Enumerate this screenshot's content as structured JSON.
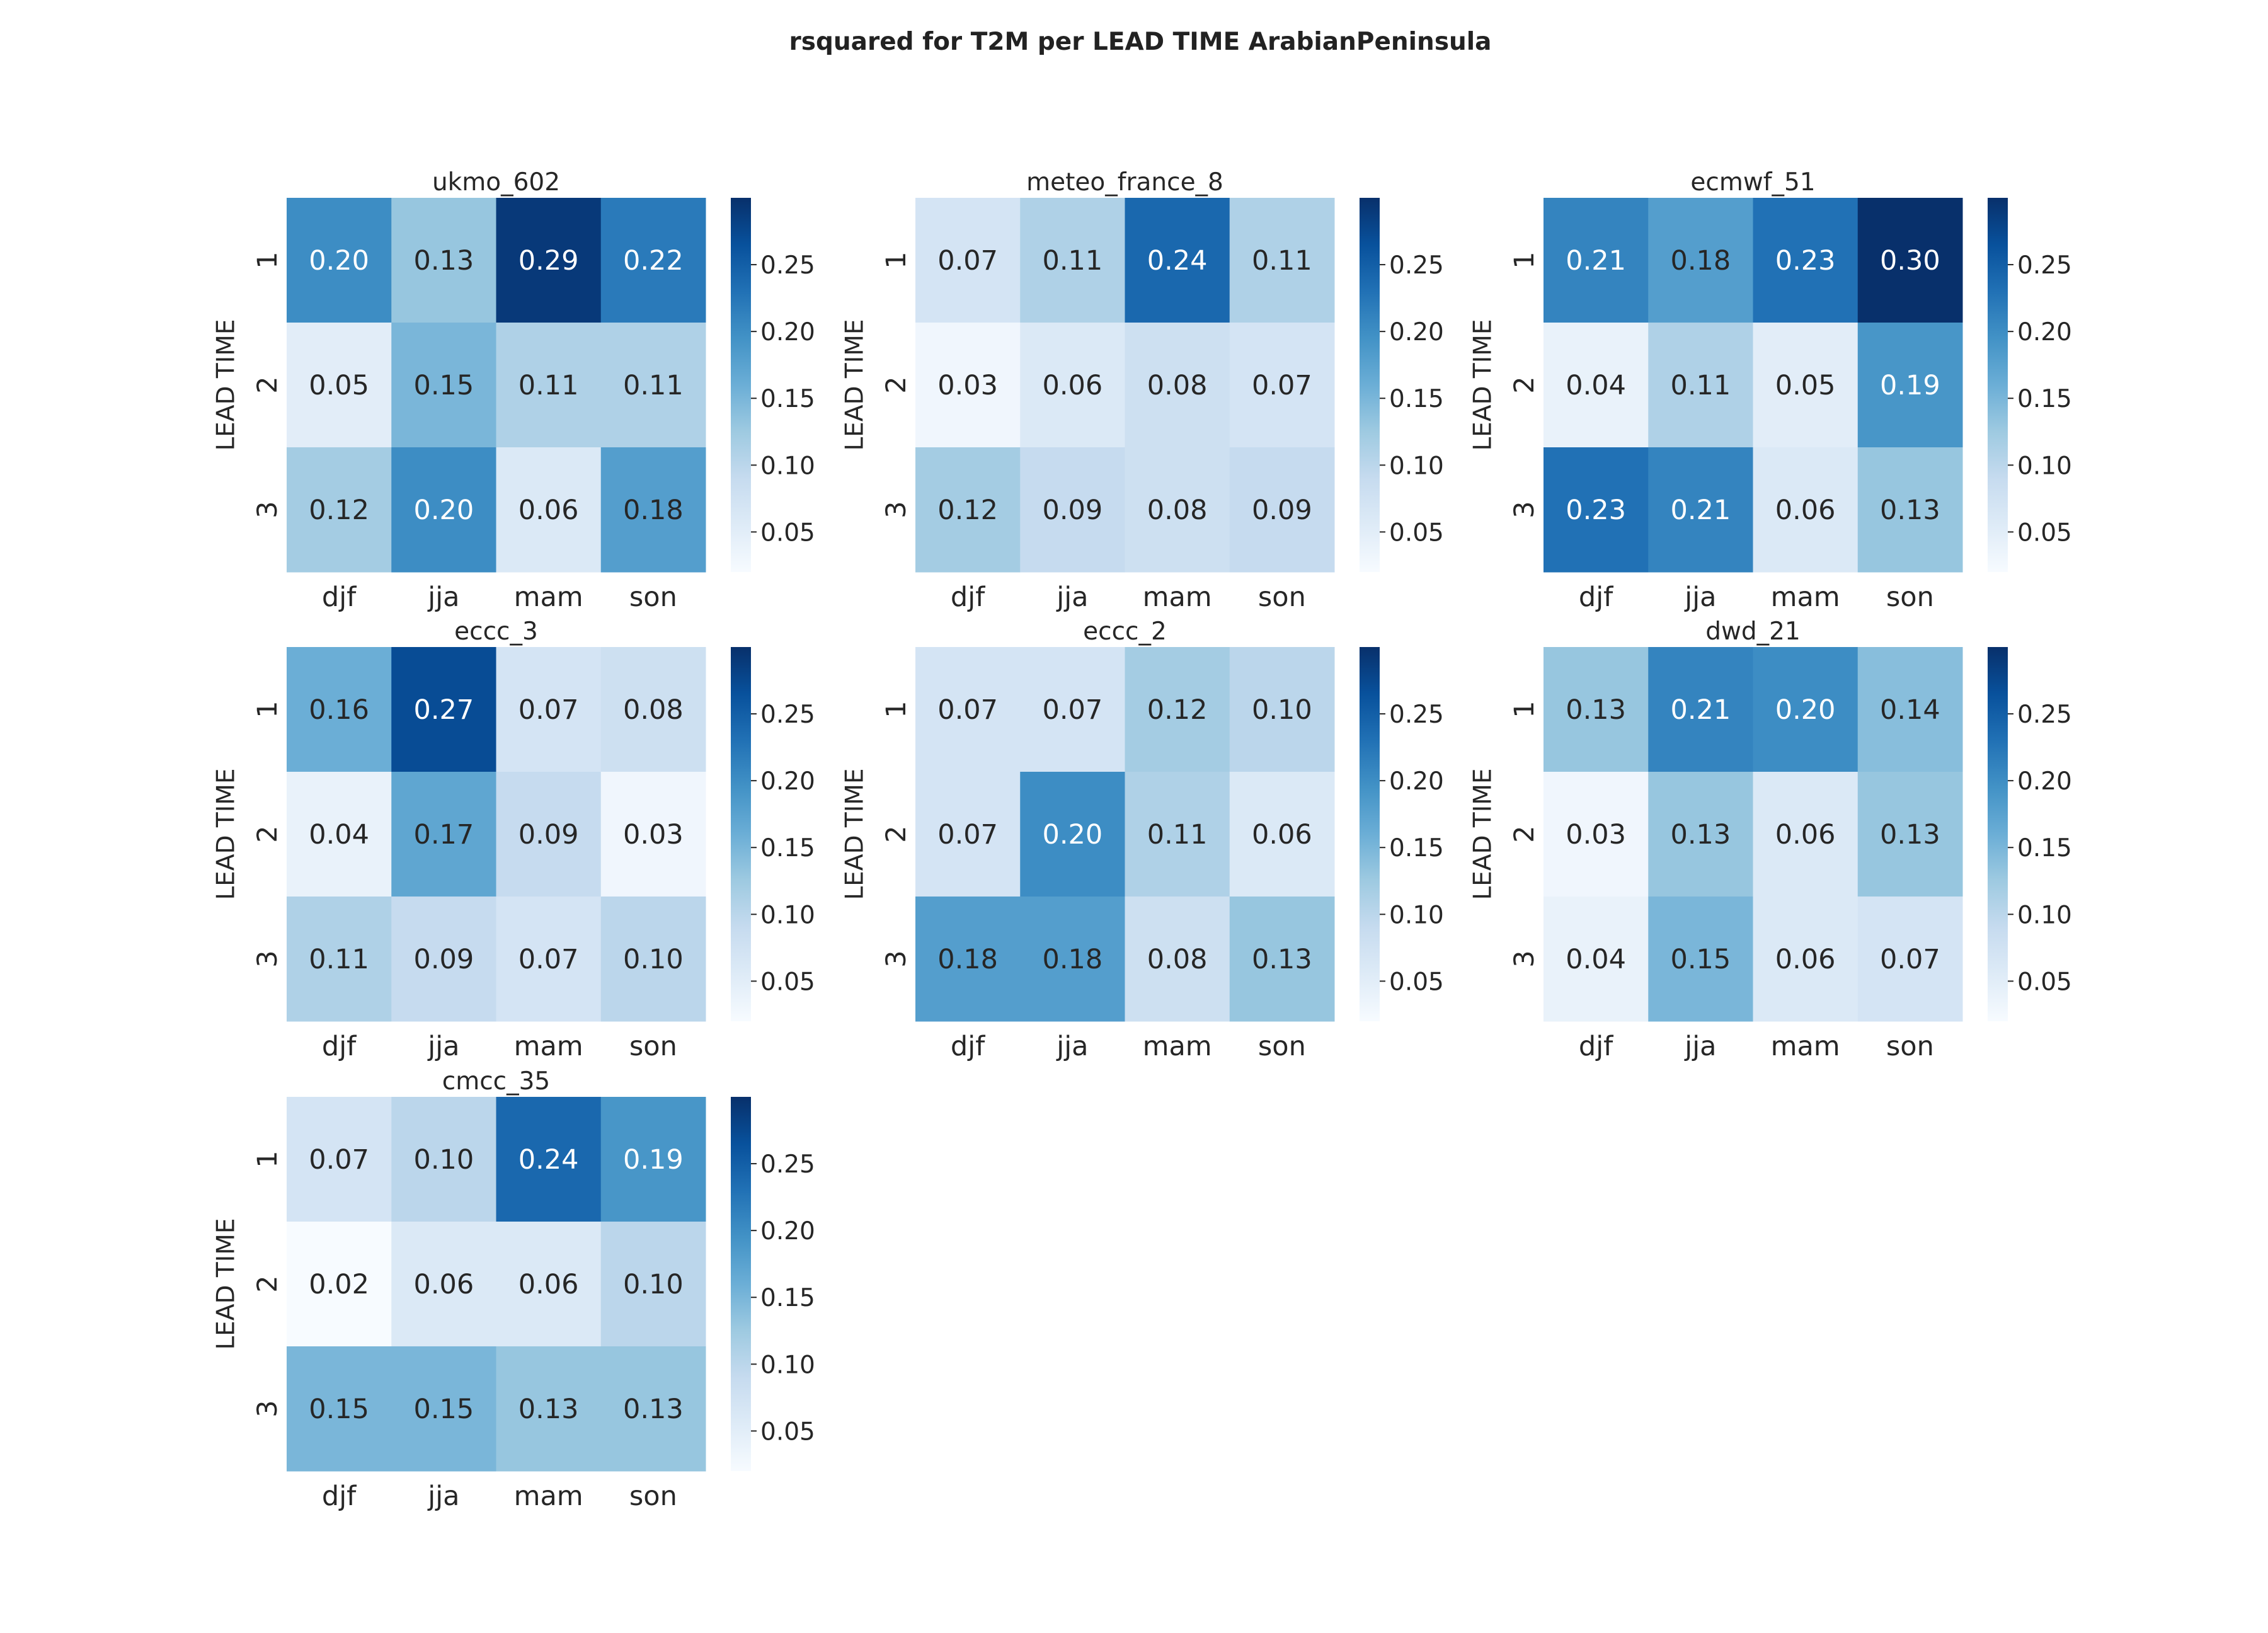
{
  "chart_data": {
    "type": "heatmap",
    "title": "rsquared  for T2M  per  LEAD TIME ArabianPeninsula",
    "x_categories": [
      "djf",
      "jja",
      "mam",
      "son"
    ],
    "y_categories": [
      "1",
      "2",
      "3"
    ],
    "ylabel": "LEAD TIME",
    "colormap": "Blues",
    "color_range": [
      0.02,
      0.3
    ],
    "colorbar_ticks": [
      0.05,
      0.1,
      0.15,
      0.2,
      0.25
    ],
    "colorbar_tick_labels": [
      "0.05",
      "0.10",
      "0.15",
      "0.20",
      "0.25"
    ],
    "panels": [
      {
        "name": "ukmo_602",
        "values": [
          [
            0.2,
            0.13,
            0.29,
            0.22
          ],
          [
            0.05,
            0.15,
            0.11,
            0.11
          ],
          [
            0.12,
            0.2,
            0.06,
            0.18
          ]
        ]
      },
      {
        "name": "meteo_france_8",
        "values": [
          [
            0.07,
            0.11,
            0.24,
            0.11
          ],
          [
            0.03,
            0.06,
            0.08,
            0.07
          ],
          [
            0.12,
            0.09,
            0.08,
            0.09
          ]
        ]
      },
      {
        "name": "ecmwf_51",
        "values": [
          [
            0.21,
            0.18,
            0.23,
            0.3
          ],
          [
            0.04,
            0.11,
            0.05,
            0.19
          ],
          [
            0.23,
            0.21,
            0.06,
            0.13
          ]
        ]
      },
      {
        "name": "eccc_3",
        "values": [
          [
            0.16,
            0.27,
            0.07,
            0.08
          ],
          [
            0.04,
            0.17,
            0.09,
            0.03
          ],
          [
            0.11,
            0.09,
            0.07,
            0.1
          ]
        ]
      },
      {
        "name": "eccc_2",
        "values": [
          [
            0.07,
            0.07,
            0.12,
            0.1
          ],
          [
            0.07,
            0.2,
            0.11,
            0.06
          ],
          [
            0.18,
            0.18,
            0.08,
            0.13
          ]
        ]
      },
      {
        "name": "dwd_21",
        "values": [
          [
            0.13,
            0.21,
            0.2,
            0.14
          ],
          [
            0.03,
            0.13,
            0.06,
            0.13
          ],
          [
            0.04,
            0.15,
            0.06,
            0.07
          ]
        ]
      },
      {
        "name": "cmcc_35",
        "values": [
          [
            0.07,
            0.1,
            0.24,
            0.19
          ],
          [
            0.02,
            0.06,
            0.06,
            0.1
          ],
          [
            0.15,
            0.15,
            0.13,
            0.13
          ]
        ]
      }
    ]
  }
}
